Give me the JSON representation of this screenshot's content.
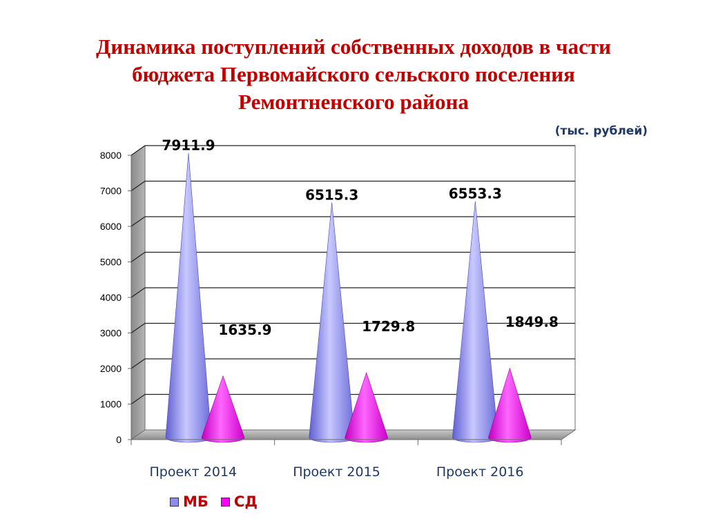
{
  "slide": {
    "title_lines": [
      "Динамика поступлений собственных доходов в части",
      "бюджета Первомайского сельского поселения",
      "Ремонтненского  района"
    ],
    "unit": "(тыс. рублей)"
  },
  "chart_data": {
    "type": "bar",
    "shape": "cone",
    "categories": [
      "Проект 2014",
      "Проект 2015",
      "Проект 2016"
    ],
    "series": [
      {
        "name": "МБ",
        "values": [
          7911.9,
          6515.3,
          6553.3
        ],
        "color": "#8c8cf2"
      },
      {
        "name": "СД",
        "values": [
          1635.9,
          1729.8,
          1849.8
        ],
        "color": "#ff00ff"
      }
    ],
    "value_labels": [
      [
        "7911.9",
        "6515.3",
        "6553.3"
      ],
      [
        "1635.9",
        "1729.8",
        "1849.8"
      ]
    ],
    "ylim": [
      0,
      8000
    ],
    "yticks": [
      0,
      1000,
      2000,
      3000,
      4000,
      5000,
      6000,
      7000,
      8000
    ],
    "legend_position": "bottom-left",
    "grid": true
  }
}
